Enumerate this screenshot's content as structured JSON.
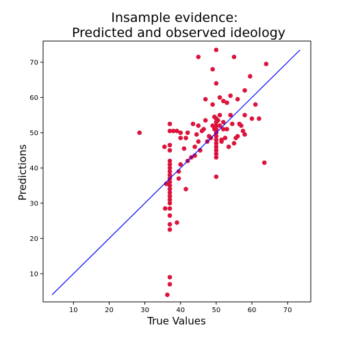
{
  "chart_data": {
    "type": "scatter",
    "title_line1": "Insample evidence:",
    "title_line2": "Predicted and observed ideology",
    "xlabel": "True Values",
    "ylabel": "Predictions",
    "xlim": [
      1.5,
      76.5
    ],
    "ylim": [
      2,
      76
    ],
    "xticks": [
      10,
      20,
      30,
      40,
      50,
      60,
      70
    ],
    "yticks": [
      10,
      20,
      30,
      40,
      50,
      60,
      70
    ],
    "point_color": "#dc143c",
    "line_color": "#0000ff",
    "reference_line": {
      "x": [
        4,
        73.5
      ],
      "y": [
        4,
        73.5
      ]
    },
    "points": [
      [
        28.5,
        50
      ],
      [
        35.5,
        46
      ],
      [
        35.7,
        28.5
      ],
      [
        36,
        35.5
      ],
      [
        36.3,
        4
      ],
      [
        37,
        52.5
      ],
      [
        37,
        50.5
      ],
      [
        37,
        46.5
      ],
      [
        37,
        45
      ],
      [
        37,
        42
      ],
      [
        37,
        41
      ],
      [
        37,
        40
      ],
      [
        37,
        39
      ],
      [
        37,
        38
      ],
      [
        37,
        37
      ],
      [
        37,
        36
      ],
      [
        37,
        35
      ],
      [
        37,
        34
      ],
      [
        37,
        33
      ],
      [
        37,
        32
      ],
      [
        37,
        31
      ],
      [
        37,
        30
      ],
      [
        37,
        28.5
      ],
      [
        37,
        26.5
      ],
      [
        37,
        24
      ],
      [
        37,
        22.5
      ],
      [
        37,
        9
      ],
      [
        37,
        7
      ],
      [
        38,
        50.5
      ],
      [
        39,
        50.5
      ],
      [
        39,
        24.5
      ],
      [
        39.5,
        37
      ],
      [
        39.5,
        39
      ],
      [
        40,
        41
      ],
      [
        40,
        48.5
      ],
      [
        40,
        50
      ],
      [
        41,
        45.5
      ],
      [
        41.5,
        34
      ],
      [
        41.5,
        48.5
      ],
      [
        42,
        50
      ],
      [
        42,
        42
      ],
      [
        43,
        43
      ],
      [
        43.5,
        52.5
      ],
      [
        44,
        43.5
      ],
      [
        44,
        46
      ],
      [
        44.5,
        49.5
      ],
      [
        45,
        47.5
      ],
      [
        45,
        52
      ],
      [
        45,
        71.5
      ],
      [
        45.5,
        45
      ],
      [
        46,
        50.5
      ],
      [
        46.5,
        51
      ],
      [
        47,
        59.5
      ],
      [
        47,
        53.5
      ],
      [
        47.5,
        47.5
      ],
      [
        48,
        49
      ],
      [
        48.5,
        48.5
      ],
      [
        49,
        52
      ],
      [
        49,
        58
      ],
      [
        49,
        68
      ],
      [
        49.5,
        54.5
      ],
      [
        49.5,
        51
      ],
      [
        50,
        73.5
      ],
      [
        50,
        64
      ],
      [
        50,
        50
      ],
      [
        50,
        46
      ],
      [
        50,
        45
      ],
      [
        50,
        44
      ],
      [
        50,
        43
      ],
      [
        50,
        37.5
      ],
      [
        50,
        54
      ],
      [
        50,
        53
      ],
      [
        50,
        52
      ],
      [
        50,
        51
      ],
      [
        50,
        49
      ],
      [
        50,
        48
      ],
      [
        50,
        47
      ],
      [
        50.5,
        53.5
      ],
      [
        51,
        60
      ],
      [
        51,
        55
      ],
      [
        51,
        52
      ],
      [
        51.5,
        48
      ],
      [
        51.5,
        47.5
      ],
      [
        52,
        53
      ],
      [
        52,
        51
      ],
      [
        52,
        59
      ],
      [
        52.5,
        48.5
      ],
      [
        53,
        58.5
      ],
      [
        53,
        51
      ],
      [
        53.5,
        46
      ],
      [
        54,
        55
      ],
      [
        54,
        60.5
      ],
      [
        54.5,
        52.5
      ],
      [
        55,
        47
      ],
      [
        55,
        71.5
      ],
      [
        55.5,
        48.5
      ],
      [
        56,
        49
      ],
      [
        56,
        59.5
      ],
      [
        56.5,
        52.5
      ],
      [
        57,
        52
      ],
      [
        57.5,
        50.5
      ],
      [
        58,
        49.5
      ],
      [
        58,
        55
      ],
      [
        58,
        62
      ],
      [
        59.5,
        66
      ],
      [
        60,
        54
      ],
      [
        61,
        58
      ],
      [
        62,
        54
      ],
      [
        63.5,
        41.5
      ],
      [
        64,
        69.5
      ]
    ]
  }
}
